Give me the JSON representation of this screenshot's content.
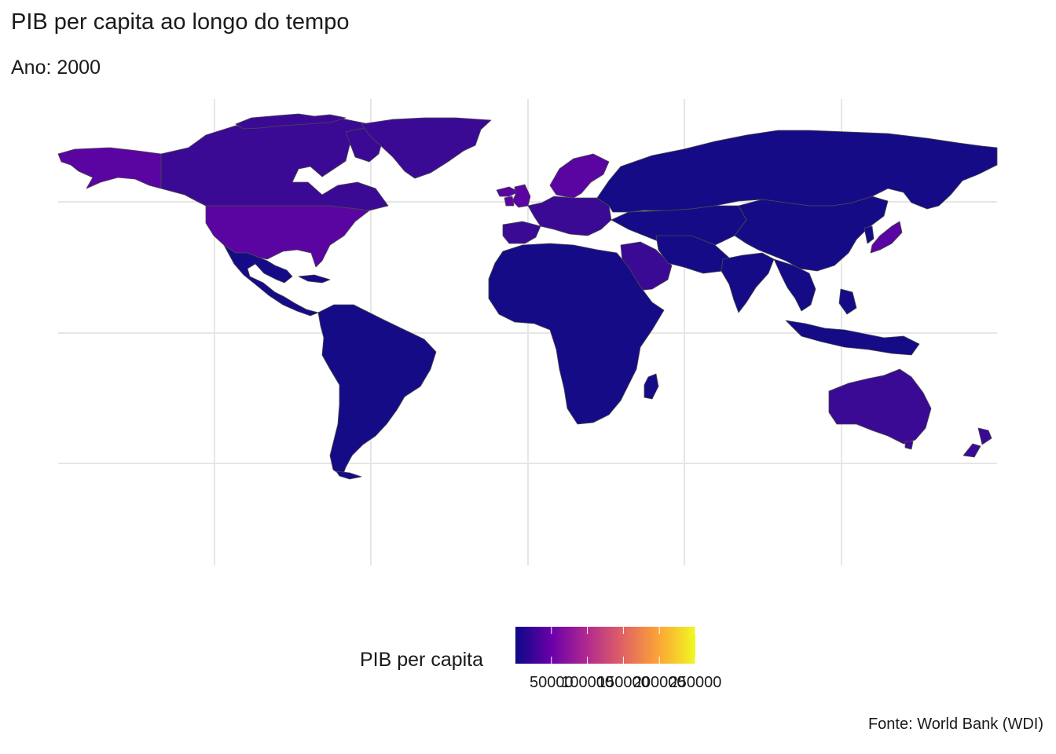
{
  "title": "PIB per capita ao longo do tempo",
  "subtitle": "Ano: 2000",
  "caption": "Fonte: World Bank (WDI)",
  "legend": {
    "title": "PIB per capita",
    "min": 0,
    "max": 250000,
    "ticks": [
      50000,
      100000,
      150000,
      200000,
      250000
    ],
    "tick_labels": [
      "50000",
      "100000",
      "150000",
      "200000",
      "250000"
    ],
    "palette": [
      "#0d0887",
      "#6a00a8",
      "#b12a90",
      "#e16462",
      "#fca636",
      "#f0f921"
    ]
  },
  "map": {
    "projection": "equirectangular",
    "grid": true,
    "colors": {
      "land_low": "#160b87",
      "land_mid": "#3b0a95",
      "land_high": "#5a05a2",
      "border": "#4a4a4a",
      "grid": "#e6e6e6"
    }
  }
}
